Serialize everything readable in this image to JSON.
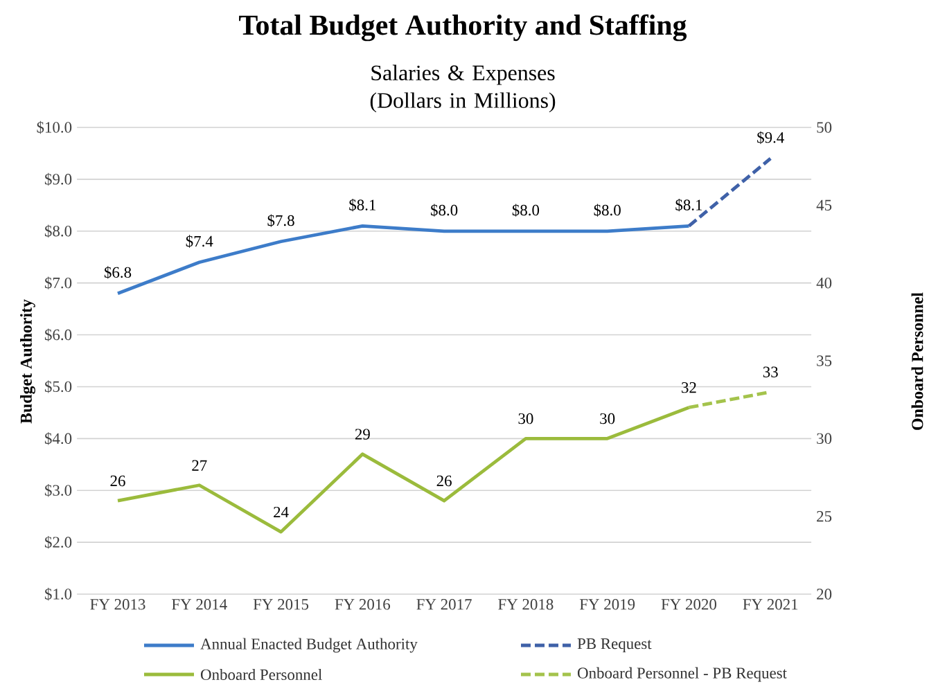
{
  "chart_data": {
    "type": "line",
    "title": "Total Budget Authority and Staffing",
    "subtitle": "Salaries & Expenses (Dollars in Millions)",
    "ylabel": "Budget Authority",
    "y2label": "Onboard Personnel",
    "categories": [
      "FY 2013",
      "FY 2014",
      "FY 2015",
      "FY 2016",
      "FY 2017",
      "FY 2018",
      "FY 2019",
      "FY 2020",
      "FY 2021"
    ],
    "series": [
      {
        "name": "Annual Enacted Budget Authority",
        "color": "#3d7cc9",
        "line_style": "solid",
        "values": [
          6.8,
          7.4,
          7.8,
          8.1,
          8.0,
          8.0,
          8.0,
          8.1,
          null
        ],
        "value_labels": [
          "$6.8",
          "$7.4",
          "$7.8",
          "$8.1",
          "$8.0",
          "$8.0",
          "$8.0",
          "$8.1",
          null
        ]
      },
      {
        "name": "PB Request",
        "color": "#3f61a8",
        "line_style": "dashed",
        "values": [
          null,
          null,
          null,
          null,
          null,
          null,
          null,
          8.1,
          9.4
        ],
        "value_labels": [
          null,
          null,
          null,
          null,
          null,
          null,
          null,
          null,
          "$9.4"
        ]
      },
      {
        "name": "Onboard Personnel",
        "color": "#9bbb3c",
        "line_style": "solid",
        "axis": "y2",
        "values": [
          26,
          27,
          24,
          29,
          26,
          30,
          30,
          32,
          null
        ],
        "value_labels": [
          "26",
          "27",
          "24",
          "29",
          "26",
          "30",
          "30",
          "32",
          null
        ]
      },
      {
        "name": "Onboard Personnel - PB Request",
        "color": "#a4c34c",
        "line_style": "dashed",
        "axis": "y2",
        "values": [
          null,
          null,
          null,
          null,
          null,
          null,
          null,
          32,
          33
        ],
        "value_labels": [
          null,
          null,
          null,
          null,
          null,
          null,
          null,
          null,
          "33"
        ]
      }
    ],
    "ylim": [
      1,
      10
    ],
    "yticks": [
      {
        "value": 1,
        "label": "$1.0"
      },
      {
        "value": 2,
        "label": "$2.0"
      },
      {
        "value": 3,
        "label": "$3.0"
      },
      {
        "value": 4,
        "label": "$4.0"
      },
      {
        "value": 5,
        "label": "$5.0"
      },
      {
        "value": 6,
        "label": "$6.0"
      },
      {
        "value": 7,
        "label": "$7.0"
      },
      {
        "value": 8,
        "label": "$8.0"
      },
      {
        "value": 9,
        "label": "$9.0"
      },
      {
        "value": 10,
        "label": "$10.0"
      }
    ],
    "y2lim": [
      20,
      50
    ],
    "y2ticks": [
      20,
      25,
      30,
      35,
      40,
      45,
      50
    ],
    "grid": "y",
    "legend": "bottom",
    "marker": "none"
  }
}
